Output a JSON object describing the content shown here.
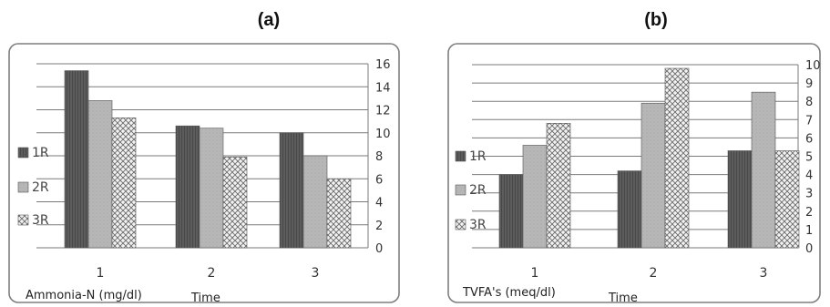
{
  "chart_data": [
    {
      "panel_label": "(a)",
      "type": "bar",
      "categories": [
        "1",
        "2",
        "3"
      ],
      "xlabel": "Time",
      "ylabel": "Ammonia-N (mg/dl)",
      "ylim": [
        0,
        16
      ],
      "yticks": [
        "0",
        "2",
        "4",
        "6",
        "8",
        "10",
        "12",
        "14",
        "16"
      ],
      "y_axis_side": "right",
      "grid": true,
      "legend_position": "left",
      "series": [
        {
          "name": "1R",
          "values": [
            15.4,
            10.6,
            10.0
          ]
        },
        {
          "name": "2R",
          "values": [
            12.8,
            10.4,
            8.0
          ]
        },
        {
          "name": "3R",
          "values": [
            11.3,
            7.9,
            6.0
          ]
        }
      ]
    },
    {
      "panel_label": "(b)",
      "type": "bar",
      "categories": [
        "1",
        "2",
        "3"
      ],
      "xlabel": "Time",
      "ylabel": "TVFA's (meq/dl)",
      "ylim": [
        0,
        10
      ],
      "yticks": [
        "0",
        "1",
        "2",
        "3",
        "4",
        "5",
        "6",
        "7",
        "8",
        "9",
        "10"
      ],
      "y_axis_side": "right",
      "grid": true,
      "legend_position": "left",
      "series": [
        {
          "name": "1R",
          "values": [
            4.0,
            4.2,
            5.3
          ]
        },
        {
          "name": "2R",
          "values": [
            5.6,
            7.9,
            8.5
          ]
        },
        {
          "name": "3R",
          "values": [
            6.8,
            9.8,
            5.3
          ]
        }
      ]
    }
  ],
  "colors": {
    "series": [
      "#5c5c5c",
      "#b4b4b4",
      "#e4e4e4"
    ],
    "pattern_line": "#6a6a6a",
    "grid": "#7a7a7a",
    "frame": "#7f7f7f"
  }
}
